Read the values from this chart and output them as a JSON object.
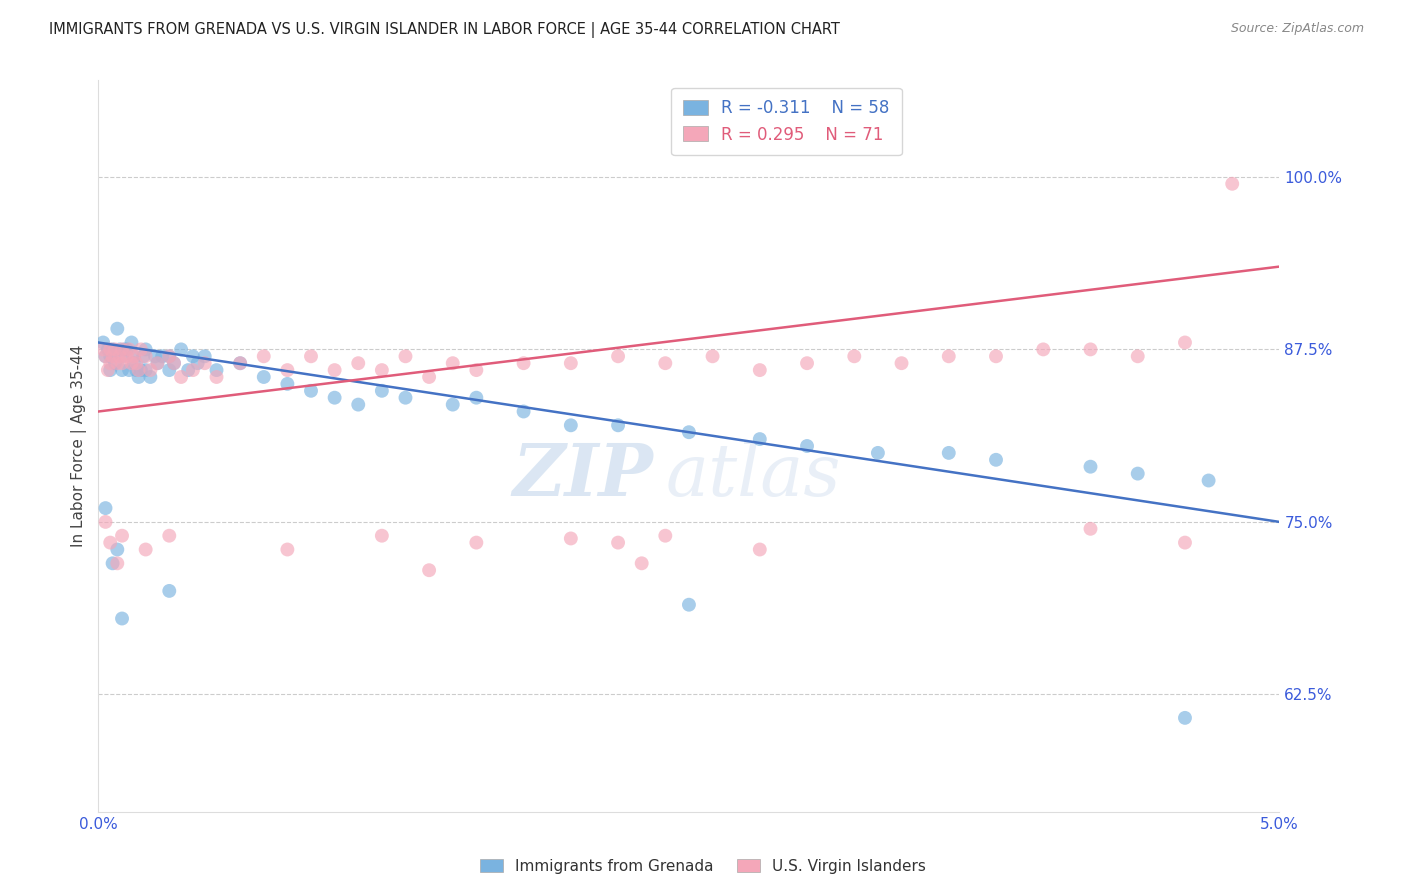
{
  "title": "IMMIGRANTS FROM GRENADA VS U.S. VIRGIN ISLANDER IN LABOR FORCE | AGE 35-44 CORRELATION CHART",
  "source": "Source: ZipAtlas.com",
  "ylabel": "In Labor Force | Age 35-44",
  "xlim": [
    0.0,
    0.05
  ],
  "ylim": [
    0.54,
    1.07
  ],
  "xticks": [
    0.0,
    0.01,
    0.02,
    0.03,
    0.04,
    0.05
  ],
  "xticklabels": [
    "0.0%",
    "",
    "",
    "",
    "",
    "5.0%"
  ],
  "yticks_right": [
    0.625,
    0.75,
    0.875,
    1.0
  ],
  "ytick_labels_right": [
    "62.5%",
    "75.0%",
    "87.5%",
    "100.0%"
  ],
  "blue_R": -0.311,
  "blue_N": 58,
  "pink_R": 0.295,
  "pink_N": 71,
  "blue_color": "#7ab3e0",
  "pink_color": "#f4a7b9",
  "blue_line_color": "#4472c4",
  "pink_line_color": "#e05c7a",
  "legend_label_blue": "Immigrants from Grenada",
  "legend_label_pink": "U.S. Virgin Islanders",
  "watermark_zip": "ZIP",
  "watermark_atlas": "atlas",
  "blue_trend_x": [
    0.0,
    0.05
  ],
  "blue_trend_y": [
    0.88,
    0.75
  ],
  "pink_trend_x": [
    0.0,
    0.05
  ],
  "pink_trend_y": [
    0.83,
    0.935
  ],
  "blue_x": [
    0.0002,
    0.0003,
    0.0004,
    0.0005,
    0.0005,
    0.0006,
    0.0007,
    0.0008,
    0.0009,
    0.001,
    0.001,
    0.0011,
    0.0012,
    0.0013,
    0.0014,
    0.0015,
    0.0015,
    0.0016,
    0.0017,
    0.0018,
    0.0019,
    0.002,
    0.002,
    0.0022,
    0.0024,
    0.0025,
    0.0027,
    0.003,
    0.003,
    0.0032,
    0.0035,
    0.0038,
    0.004,
    0.0042,
    0.0045,
    0.005,
    0.006,
    0.007,
    0.008,
    0.009,
    0.01,
    0.011,
    0.012,
    0.013,
    0.015,
    0.016,
    0.018,
    0.02,
    0.022,
    0.025,
    0.028,
    0.03,
    0.033,
    0.036,
    0.038,
    0.042,
    0.044,
    0.047
  ],
  "blue_y": [
    0.88,
    0.87,
    0.875,
    0.86,
    0.87,
    0.875,
    0.865,
    0.89,
    0.875,
    0.86,
    0.87,
    0.875,
    0.875,
    0.86,
    0.88,
    0.87,
    0.865,
    0.86,
    0.855,
    0.86,
    0.87,
    0.86,
    0.875,
    0.855,
    0.87,
    0.865,
    0.87,
    0.86,
    0.87,
    0.865,
    0.875,
    0.86,
    0.87,
    0.865,
    0.87,
    0.86,
    0.865,
    0.855,
    0.85,
    0.845,
    0.84,
    0.835,
    0.845,
    0.84,
    0.835,
    0.84,
    0.83,
    0.82,
    0.82,
    0.815,
    0.81,
    0.805,
    0.8,
    0.8,
    0.795,
    0.79,
    0.785,
    0.78
  ],
  "blue_x_outliers": [
    0.0003,
    0.0006,
    0.0008,
    0.001,
    0.003,
    0.025,
    0.046
  ],
  "blue_y_outliers": [
    0.76,
    0.72,
    0.73,
    0.68,
    0.7,
    0.69,
    0.608
  ],
  "pink_x": [
    0.0002,
    0.0003,
    0.0004,
    0.0005,
    0.0005,
    0.0006,
    0.0007,
    0.0008,
    0.0009,
    0.001,
    0.001,
    0.0012,
    0.0013,
    0.0014,
    0.0015,
    0.0016,
    0.0017,
    0.0018,
    0.002,
    0.0022,
    0.0025,
    0.003,
    0.0032,
    0.0035,
    0.004,
    0.0045,
    0.005,
    0.006,
    0.007,
    0.008,
    0.009,
    0.01,
    0.011,
    0.012,
    0.013,
    0.014,
    0.015,
    0.016,
    0.018,
    0.02,
    0.022,
    0.024,
    0.026,
    0.028,
    0.03,
    0.032,
    0.034,
    0.036,
    0.038,
    0.04,
    0.042,
    0.044,
    0.046,
    0.048
  ],
  "pink_y": [
    0.875,
    0.87,
    0.86,
    0.875,
    0.865,
    0.87,
    0.875,
    0.865,
    0.87,
    0.865,
    0.875,
    0.87,
    0.875,
    0.865,
    0.87,
    0.865,
    0.86,
    0.875,
    0.87,
    0.86,
    0.865,
    0.87,
    0.865,
    0.855,
    0.86,
    0.865,
    0.855,
    0.865,
    0.87,
    0.86,
    0.87,
    0.86,
    0.865,
    0.86,
    0.87,
    0.855,
    0.865,
    0.86,
    0.865,
    0.865,
    0.87,
    0.865,
    0.87,
    0.86,
    0.865,
    0.87,
    0.865,
    0.87,
    0.87,
    0.875,
    0.875,
    0.87,
    0.88,
    0.995
  ],
  "pink_x_outliers": [
    0.0003,
    0.0005,
    0.0008,
    0.001,
    0.002,
    0.003,
    0.008,
    0.012,
    0.016,
    0.02,
    0.022,
    0.024,
    0.028,
    0.042,
    0.046,
    0.023,
    0.014
  ],
  "pink_y_outliers": [
    0.75,
    0.735,
    0.72,
    0.74,
    0.73,
    0.74,
    0.73,
    0.74,
    0.735,
    0.738,
    0.735,
    0.74,
    0.73,
    0.745,
    0.735,
    0.72,
    0.715
  ]
}
